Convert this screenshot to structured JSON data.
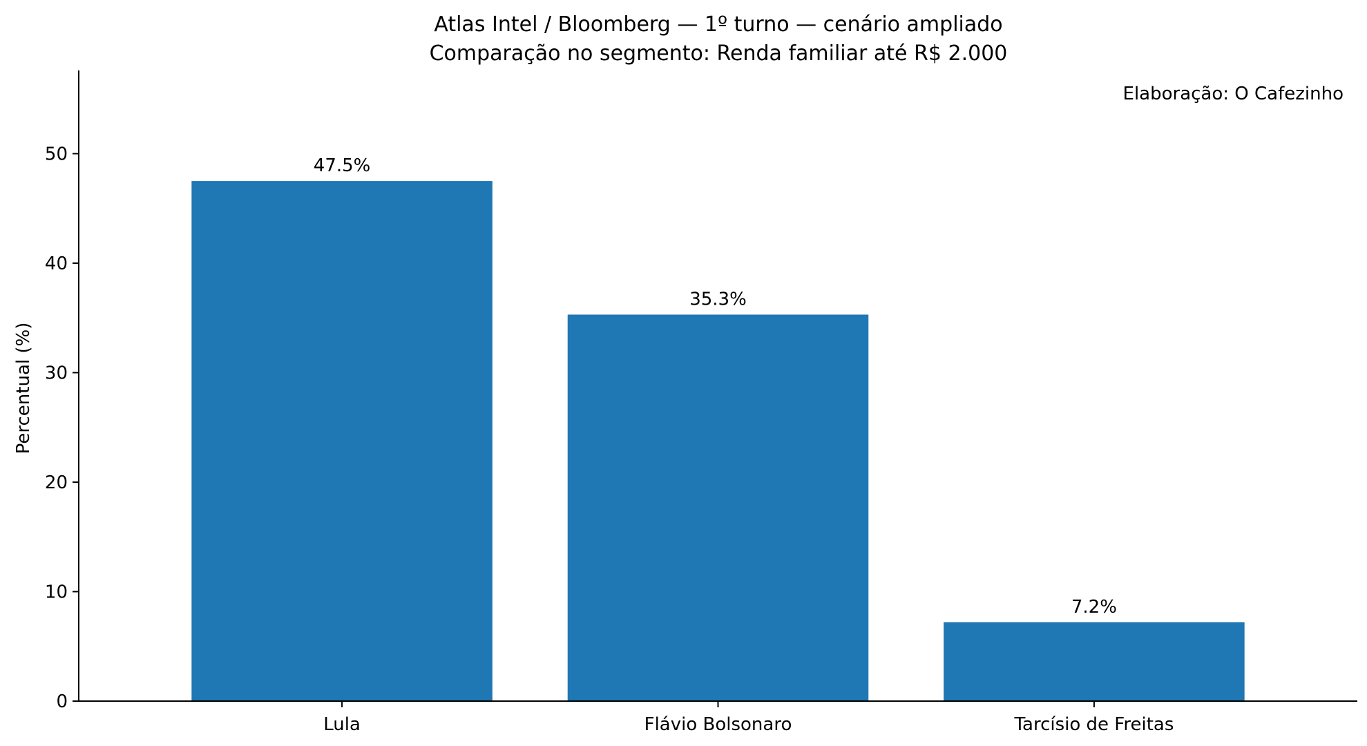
{
  "chart_data": {
    "type": "bar",
    "title": "Atlas Intel / Bloomberg — 1º turno — cenário ampliado",
    "subtitle": "Comparação no segmento: Renda familiar até R$ 2.000",
    "annotation": "Elaboração: O Cafezinho",
    "xlabel": "",
    "ylabel": "Percentual (%)",
    "categories": [
      "Lula",
      "Flávio Bolsonaro",
      "Tarcísio de Freitas"
    ],
    "values": [
      47.5,
      35.3,
      7.2
    ],
    "value_labels": [
      "47.5%",
      "35.3%",
      "7.2%"
    ],
    "ylim": [
      0,
      57.6
    ],
    "yticks": [
      0,
      10,
      20,
      30,
      40,
      50
    ],
    "grid": false,
    "legend": "none",
    "bar_color": "#1f77b4"
  }
}
